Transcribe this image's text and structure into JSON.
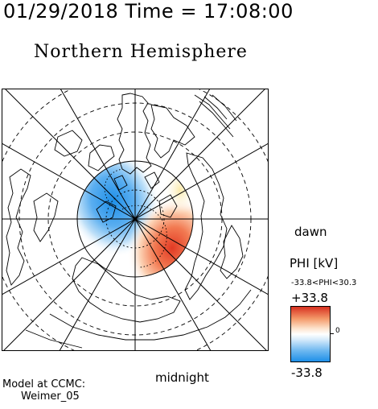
{
  "header": {
    "timestamp": "01/29/2018 Time = 17:08:00",
    "title": "Northern Hemisphere"
  },
  "map_labels": {
    "dawn": "dawn",
    "midnight": "midnight"
  },
  "legend": {
    "quantity": "PHI [kV]",
    "range_text": "-33.8<PHI<30.3",
    "max_label": "+33.8",
    "zero_label": "0",
    "min_label": "-33.8",
    "colors": {
      "positive": "#d7301f",
      "neutral": "#ffffff",
      "negative": "#1e8fe8"
    }
  },
  "credit": {
    "line1": "Model at CCMC:",
    "line2": "Weimer_05"
  }
}
